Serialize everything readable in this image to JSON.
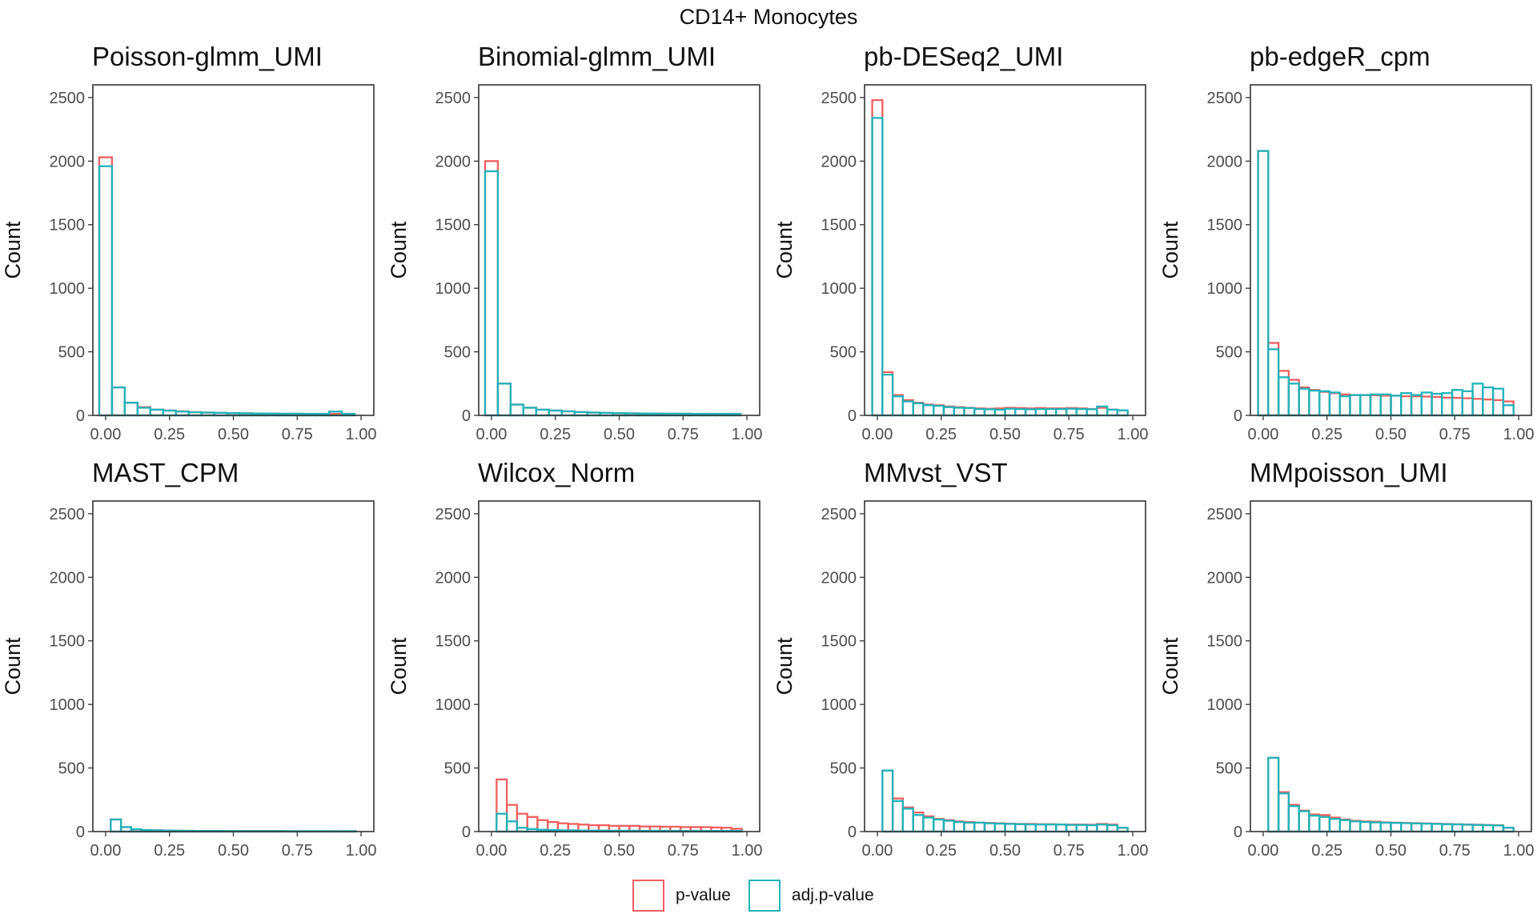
{
  "figure": {
    "title": "CD14+ Monocytes"
  },
  "legend": {
    "items": [
      {
        "label": "p-value",
        "color": "#F0605E"
      },
      {
        "label": "adj.p-value",
        "color": "#1FB3BA"
      }
    ]
  },
  "chart_data": [
    {
      "type": "bar",
      "subtype": "histogram",
      "title": "Poisson-glmm_UMI",
      "xlabel": "",
      "ylabel": "Count",
      "xlim": [
        -0.05,
        1.05
      ],
      "ylim": [
        0,
        2600
      ],
      "xticks": [
        "0.00",
        "0.25",
        "0.50",
        "0.75",
        "1.00"
      ],
      "yticks": [
        "0",
        "500",
        "1000",
        "1500",
        "2000",
        "2500"
      ],
      "bin_width": 0.05,
      "bin_starts_at": 0.0,
      "series": [
        {
          "name": "p-value",
          "values": [
            2030,
            220,
            100,
            65,
            45,
            38,
            32,
            25,
            22,
            20,
            18,
            16,
            15,
            14,
            13,
            13,
            12,
            12,
            12,
            12
          ]
        },
        {
          "name": "adj.p-value",
          "values": [
            1960,
            220,
            100,
            60,
            45,
            38,
            30,
            25,
            22,
            20,
            18,
            16,
            15,
            14,
            13,
            13,
            12,
            12,
            30,
            12
          ]
        }
      ]
    },
    {
      "type": "bar",
      "subtype": "histogram",
      "title": "Binomial-glmm_UMI",
      "xlabel": "",
      "ylabel": "Count",
      "xlim": [
        -0.05,
        1.05
      ],
      "ylim": [
        0,
        2600
      ],
      "xticks": [
        "0.00",
        "0.25",
        "0.50",
        "0.75",
        "1.00"
      ],
      "yticks": [
        "0",
        "500",
        "1000",
        "1500",
        "2000",
        "2500"
      ],
      "bin_width": 0.05,
      "bin_starts_at": 0.0,
      "series": [
        {
          "name": "p-value",
          "values": [
            2000,
            250,
            85,
            60,
            45,
            38,
            32,
            26,
            22,
            20,
            18,
            16,
            15,
            14,
            13,
            13,
            12,
            12,
            12,
            12
          ]
        },
        {
          "name": "adj.p-value",
          "values": [
            1920,
            250,
            85,
            60,
            45,
            38,
            32,
            26,
            22,
            20,
            18,
            16,
            15,
            14,
            13,
            13,
            12,
            12,
            12,
            12
          ]
        }
      ]
    },
    {
      "type": "bar",
      "subtype": "histogram",
      "title": "pb-DESeq2_UMI",
      "xlabel": "",
      "ylabel": "Count",
      "xlim": [
        -0.05,
        1.05
      ],
      "ylim": [
        0,
        2600
      ],
      "xticks": [
        "0.00",
        "0.25",
        "0.50",
        "0.75",
        "1.00"
      ],
      "yticks": [
        "0",
        "500",
        "1000",
        "1500",
        "2000",
        "2500"
      ],
      "bin_width": 0.04,
      "bin_starts_at": 0.0,
      "series": [
        {
          "name": "p-value",
          "values": [
            2480,
            340,
            160,
            120,
            100,
            85,
            80,
            70,
            65,
            60,
            55,
            52,
            55,
            60,
            58,
            55,
            58,
            55,
            55,
            58,
            55,
            50,
            60,
            45,
            40
          ]
        },
        {
          "name": "adj.p-value",
          "values": [
            2340,
            320,
            150,
            110,
            95,
            80,
            75,
            65,
            60,
            58,
            50,
            48,
            45,
            52,
            50,
            48,
            50,
            50,
            50,
            52,
            50,
            48,
            70,
            45,
            40
          ]
        }
      ]
    },
    {
      "type": "bar",
      "subtype": "histogram",
      "title": "pb-edgeR_cpm",
      "xlabel": "",
      "ylabel": "Count",
      "xlim": [
        -0.05,
        1.05
      ],
      "ylim": [
        0,
        2600
      ],
      "xticks": [
        "0.00",
        "0.25",
        "0.50",
        "0.75",
        "1.00"
      ],
      "yticks": [
        "0",
        "500",
        "1000",
        "1500",
        "2000",
        "2500"
      ],
      "bin_width": 0.04,
      "bin_starts_at": 0.0,
      "series": [
        {
          "name": "p-value",
          "values": [
            2080,
            570,
            350,
            280,
            220,
            200,
            185,
            175,
            165,
            160,
            160,
            158,
            155,
            155,
            150,
            150,
            148,
            145,
            140,
            138,
            135,
            130,
            125,
            120,
            110
          ]
        },
        {
          "name": "adj.p-value",
          "values": [
            2080,
            520,
            300,
            250,
            210,
            195,
            190,
            180,
            150,
            160,
            160,
            165,
            165,
            155,
            175,
            160,
            180,
            170,
            175,
            200,
            190,
            250,
            220,
            210,
            80
          ]
        }
      ]
    },
    {
      "type": "bar",
      "subtype": "histogram",
      "title": "MAST_CPM",
      "xlabel": "",
      "ylabel": "Count",
      "xlim": [
        -0.05,
        1.05
      ],
      "ylim": [
        0,
        2600
      ],
      "xticks": [
        "0.00",
        "0.25",
        "0.50",
        "0.75",
        "1.00"
      ],
      "yticks": [
        "0",
        "500",
        "1000",
        "1500",
        "2000",
        "2500"
      ],
      "bin_width": 0.04,
      "bin_starts_at": 0.0,
      "series": [
        {
          "name": "p-value",
          "values": [
            0,
            95,
            35,
            18,
            12,
            10,
            8,
            7,
            6,
            5,
            5,
            5,
            4,
            4,
            4,
            4,
            4,
            4,
            3,
            3,
            3,
            3,
            3,
            3,
            3
          ]
        },
        {
          "name": "adj.p-value",
          "values": [
            0,
            95,
            35,
            18,
            12,
            10,
            8,
            7,
            6,
            5,
            5,
            5,
            4,
            4,
            4,
            4,
            4,
            4,
            3,
            3,
            3,
            3,
            3,
            3,
            3
          ]
        }
      ]
    },
    {
      "type": "bar",
      "subtype": "histogram",
      "title": "Wilcox_Norm",
      "xlabel": "",
      "ylabel": "Count",
      "xlim": [
        -0.05,
        1.05
      ],
      "ylim": [
        0,
        2600
      ],
      "xticks": [
        "0.00",
        "0.25",
        "0.50",
        "0.75",
        "1.00"
      ],
      "yticks": [
        "0",
        "500",
        "1000",
        "1500",
        "2000",
        "2500"
      ],
      "bin_width": 0.04,
      "bin_starts_at": 0.0,
      "series": [
        {
          "name": "p-value",
          "values": [
            0,
            410,
            210,
            140,
            115,
            90,
            75,
            65,
            60,
            55,
            50,
            50,
            45,
            45,
            45,
            40,
            40,
            38,
            38,
            35,
            35,
            35,
            32,
            30,
            22
          ]
        },
        {
          "name": "adj.p-value",
          "values": [
            0,
            140,
            80,
            30,
            20,
            15,
            12,
            10,
            10,
            8,
            8,
            8,
            7,
            7,
            7,
            6,
            6,
            6,
            6,
            5,
            5,
            5,
            5,
            5,
            5
          ]
        }
      ]
    },
    {
      "type": "bar",
      "subtype": "histogram",
      "title": "MMvst_VST",
      "xlabel": "",
      "ylabel": "Count",
      "xlim": [
        -0.05,
        1.05
      ],
      "ylim": [
        0,
        2600
      ],
      "xticks": [
        "0.00",
        "0.25",
        "0.50",
        "0.75",
        "1.00"
      ],
      "yticks": [
        "0",
        "500",
        "1000",
        "1500",
        "2000",
        "2500"
      ],
      "bin_width": 0.04,
      "bin_starts_at": 0.0,
      "series": [
        {
          "name": "p-value",
          "values": [
            0,
            480,
            260,
            190,
            150,
            120,
            100,
            90,
            80,
            75,
            70,
            68,
            65,
            62,
            60,
            60,
            58,
            58,
            56,
            55,
            55,
            54,
            60,
            55,
            30
          ]
        },
        {
          "name": "adj.p-value",
          "values": [
            0,
            480,
            240,
            180,
            130,
            110,
            95,
            85,
            75,
            70,
            70,
            65,
            62,
            60,
            58,
            56,
            55,
            55,
            55,
            52,
            52,
            50,
            55,
            50,
            30
          ]
        }
      ]
    },
    {
      "type": "bar",
      "subtype": "histogram",
      "title": "MMpoisson_UMI",
      "xlabel": "",
      "ylabel": "Count",
      "xlim": [
        -0.05,
        1.05
      ],
      "ylim": [
        0,
        2600
      ],
      "xticks": [
        "0.00",
        "0.25",
        "0.50",
        "0.75",
        "1.00"
      ],
      "yticks": [
        "0",
        "500",
        "1000",
        "1500",
        "2000",
        "2500"
      ],
      "bin_width": 0.04,
      "bin_starts_at": 0.0,
      "series": [
        {
          "name": "p-value",
          "values": [
            0,
            580,
            310,
            210,
            165,
            135,
            130,
            110,
            95,
            85,
            80,
            78,
            72,
            70,
            68,
            66,
            64,
            62,
            60,
            58,
            56,
            54,
            52,
            50,
            30
          ]
        },
        {
          "name": "adj.p-value",
          "values": [
            0,
            580,
            300,
            200,
            160,
            125,
            115,
            100,
            90,
            80,
            75,
            72,
            70,
            68,
            66,
            64,
            62,
            60,
            58,
            56,
            54,
            52,
            50,
            48,
            30
          ]
        }
      ]
    }
  ]
}
